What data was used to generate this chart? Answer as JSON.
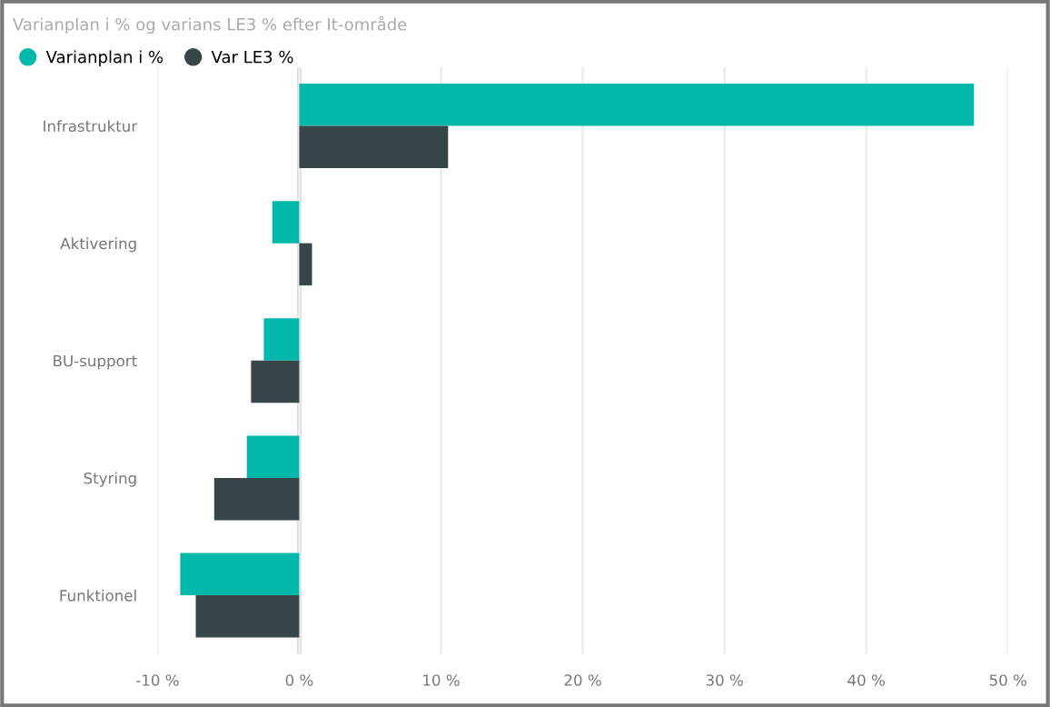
{
  "chart_data": {
    "type": "bar",
    "orientation": "horizontal",
    "title": "Varianplan i % og varians LE3 % efter It-område",
    "categories": [
      "Infrastruktur",
      "Aktivering",
      "BU-support",
      "Styring",
      "Funktionel"
    ],
    "series": [
      {
        "name": "Varianplan i %",
        "color": "#01b8aa",
        "values": [
          47.6,
          -1.9,
          -2.5,
          -3.7,
          -8.4
        ]
      },
      {
        "name": "Var LE3 %",
        "color": "#374649",
        "values": [
          10.5,
          0.9,
          -3.4,
          -6.0,
          -7.3
        ]
      }
    ],
    "xlim": [
      -10,
      50
    ],
    "xticks": [
      {
        "value": -10,
        "label": "-10 %"
      },
      {
        "value": 0,
        "label": "0 %"
      },
      {
        "value": 10,
        "label": "10 %"
      },
      {
        "value": 20,
        "label": "20 %"
      },
      {
        "value": 30,
        "label": "30 %"
      },
      {
        "value": 40,
        "label": "40 %"
      },
      {
        "value": 50,
        "label": "50 %"
      }
    ],
    "grid": "x",
    "legend": "top left",
    "marker": "circle"
  }
}
